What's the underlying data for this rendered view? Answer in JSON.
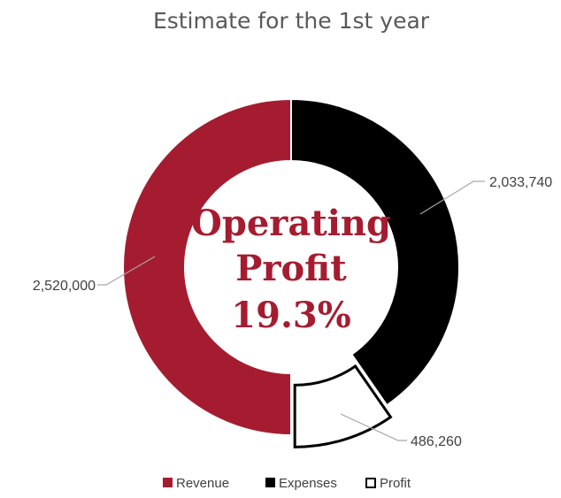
{
  "chart_data": {
    "type": "pie",
    "style": "doughnut",
    "title": "Estimate for the 1st year",
    "center_label": [
      "Operating",
      "Profit",
      "19.3%"
    ],
    "series": [
      {
        "name": "Revenue",
        "value": 2520000,
        "label": "2,520,000",
        "color": "#a51c30"
      },
      {
        "name": "Expenses",
        "value": 2033740,
        "label": "2,033,740",
        "color": "#000000"
      },
      {
        "name": "Profit",
        "value": 486260,
        "label": "486,260",
        "color": "#ffffff",
        "outline": "#000000",
        "exploded": true
      }
    ],
    "legend": {
      "position": "bottom"
    }
  }
}
